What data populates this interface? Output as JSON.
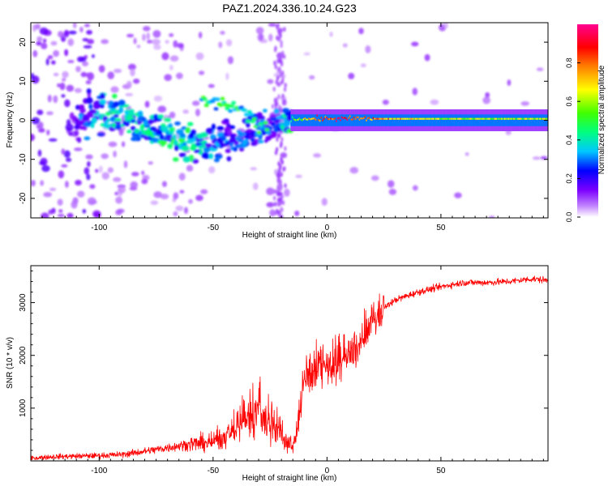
{
  "title": "PAZ1.2024.336.10.24.G23",
  "chart_data": [
    {
      "type": "heatmap",
      "title": "PAZ1.2024.336.10.24.G23",
      "xlabel": "Height of straight line (km)",
      "ylabel": "Frequency (Hz)",
      "xlim": [
        -130,
        97
      ],
      "ylim": [
        -25,
        25
      ],
      "x_ticks": [
        -100,
        -50,
        0,
        50
      ],
      "y_ticks": [
        -20,
        -10,
        0,
        10,
        20
      ],
      "colorbar": {
        "label": "Normalized spectral amplitude",
        "range": [
          0,
          1
        ],
        "ticks": [
          0.0,
          0.2,
          0.4,
          0.6,
          0.8
        ],
        "colors": [
          "#ffffff",
          "#c080ff",
          "#7b00ff",
          "#0000ff",
          "#00c8ff",
          "#00ff80",
          "#40ff00",
          "#ffff00",
          "#ff8000",
          "#ff0000",
          "#ff0090"
        ]
      },
      "ridge": {
        "x": [
          -105,
          -95,
          -85,
          -75,
          -65,
          -55,
          -45,
          -35,
          -28,
          -22,
          -15,
          -5,
          5,
          15,
          30,
          50,
          70,
          97
        ],
        "frequency": [
          1,
          2,
          -1,
          -3,
          -5,
          -6,
          -5,
          -3,
          -2,
          -1,
          0,
          0,
          1,
          0,
          0,
          0,
          0,
          0
        ],
        "amplitude": [
          0.3,
          0.45,
          0.4,
          0.45,
          0.5,
          0.4,
          0.3,
          0.3,
          0.3,
          0.3,
          0.5,
          0.8,
          0.9,
          0.8,
          0.7,
          0.6,
          0.6,
          0.6
        ]
      }
    },
    {
      "type": "line",
      "xlabel": "Height of straight line (km)",
      "ylabel": "SNR (10 * v/v)",
      "xlim": [
        -130,
        97
      ],
      "ylim": [
        0,
        3700
      ],
      "x_ticks": [
        -100,
        -50,
        0,
        50
      ],
      "y_ticks": [
        1000,
        2000,
        3000
      ],
      "color": "#ff0000",
      "series": [
        {
          "x": [
            -130,
            -120,
            -110,
            -100,
            -90,
            -80,
            -70,
            -60,
            -50,
            -45,
            -40,
            -35,
            -30,
            -25,
            -20,
            -15,
            -12,
            -10,
            -5,
            0,
            5,
            10,
            15,
            20,
            25,
            30,
            40,
            50,
            60,
            70,
            80,
            90,
            97
          ],
          "values": [
            50,
            80,
            90,
            100,
            120,
            180,
            250,
            320,
            350,
            400,
            550,
            800,
            900,
            700,
            500,
            200,
            1000,
            1500,
            1700,
            1750,
            1800,
            2000,
            2200,
            2600,
            2900,
            3050,
            3200,
            3300,
            3380,
            3380,
            3400,
            3450,
            3420
          ]
        }
      ]
    }
  ]
}
